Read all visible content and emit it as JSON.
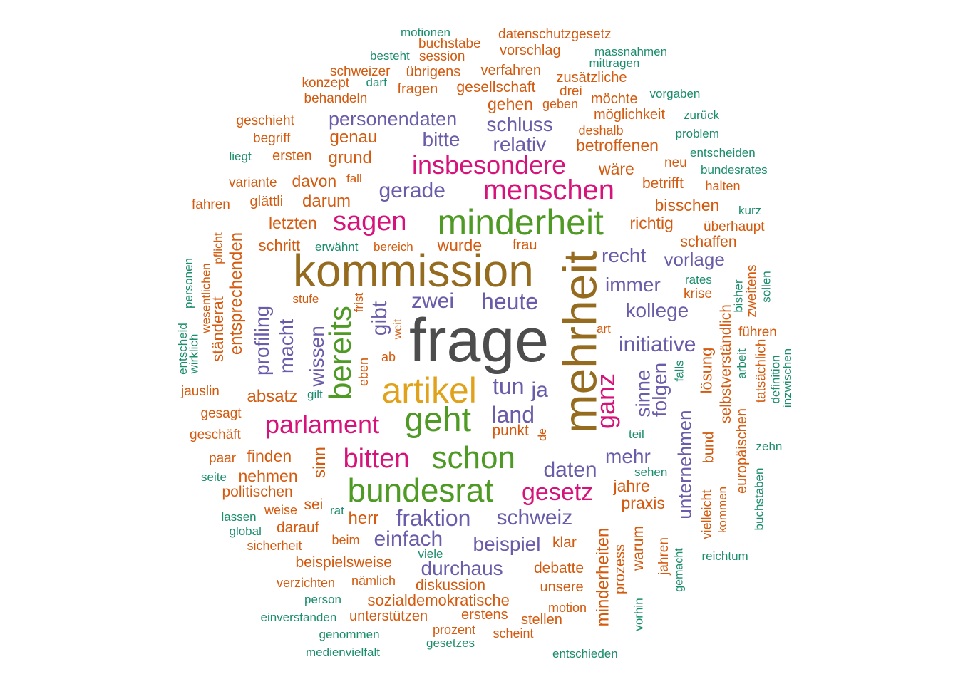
{
  "colors": {
    "dark_gray": "#4d4d4d",
    "brown": "#946b1f",
    "green": "#4f9a24",
    "gold": "#e0a21b",
    "magenta": "#d6137a",
    "purple": "#6a5ca8",
    "orange": "#d35a0e",
    "teal": "#1c8d6c"
  },
  "words": [
    {
      "text": "frage",
      "color": "dark_gray",
      "weight": 100
    },
    {
      "text": "mehrheit",
      "color": "brown",
      "weight": 79
    },
    {
      "text": "kommission",
      "color": "brown",
      "weight": 66
    },
    {
      "text": "minderheit",
      "color": "green",
      "weight": 57
    },
    {
      "text": "artikel",
      "color": "gold",
      "weight": 55
    },
    {
      "text": "geht",
      "color": "green",
      "weight": 53
    },
    {
      "text": "bundesrat",
      "color": "green",
      "weight": 51
    },
    {
      "text": "schon",
      "color": "green",
      "weight": 50
    },
    {
      "text": "bereits",
      "color": "green",
      "weight": 48
    },
    {
      "text": "menschen",
      "color": "magenta",
      "weight": 44
    },
    {
      "text": "sagen",
      "color": "magenta",
      "weight": 41
    },
    {
      "text": "insbesondere",
      "color": "magenta",
      "weight": 40
    },
    {
      "text": "parlament",
      "color": "magenta",
      "weight": 40
    },
    {
      "text": "bitten",
      "color": "magenta",
      "weight": 40
    },
    {
      "text": "gesetz",
      "color": "magenta",
      "weight": 39
    },
    {
      "text": "ganz",
      "color": "magenta",
      "weight": 39
    },
    {
      "text": "tun",
      "color": "purple",
      "weight": 37
    },
    {
      "text": "gerade",
      "color": "purple",
      "weight": 37
    },
    {
      "text": "fraktion",
      "color": "purple",
      "weight": 36
    },
    {
      "text": "zwei",
      "color": "purple",
      "weight": 35
    },
    {
      "text": "heute",
      "color": "purple",
      "weight": 35
    },
    {
      "text": "gibt",
      "color": "purple",
      "weight": 35
    },
    {
      "text": "einfach",
      "color": "purple",
      "weight": 34
    },
    {
      "text": "schweiz",
      "color": "purple",
      "weight": 34
    },
    {
      "text": "daten",
      "color": "purple",
      "weight": 34
    },
    {
      "text": "personendaten",
      "color": "purple",
      "weight": 32
    },
    {
      "text": "land",
      "color": "purple",
      "weight": 32
    },
    {
      "text": "unternehmen",
      "color": "purple",
      "weight": 31
    },
    {
      "text": "wissen",
      "color": "purple",
      "weight": 31
    },
    {
      "text": "schluss",
      "color": "purple",
      "weight": 31
    },
    {
      "text": "mehr",
      "color": "purple",
      "weight": 31
    },
    {
      "text": "recht",
      "color": "purple",
      "weight": 31
    },
    {
      "text": "immer",
      "color": "purple",
      "weight": 31
    },
    {
      "text": "kollege",
      "color": "purple",
      "weight": 31
    },
    {
      "text": "initiative",
      "color": "purple",
      "weight": 31
    },
    {
      "text": "beispiel",
      "color": "purple",
      "weight": 31
    },
    {
      "text": "durchaus",
      "color": "purple",
      "weight": 31
    },
    {
      "text": "relativ",
      "color": "purple",
      "weight": 30
    },
    {
      "text": "bitte",
      "color": "purple",
      "weight": 30
    },
    {
      "text": "macht",
      "color": "purple",
      "weight": 30
    },
    {
      "text": "profiling",
      "color": "purple",
      "weight": 30
    },
    {
      "text": "sinne",
      "color": "purple",
      "weight": 30
    },
    {
      "text": "folgen",
      "color": "purple",
      "weight": 30
    },
    {
      "text": "ja",
      "color": "purple",
      "weight": 30
    },
    {
      "text": "vorlage",
      "color": "purple",
      "weight": 29
    },
    {
      "text": "sinn",
      "color": "orange",
      "weight": 26
    },
    {
      "text": "herr",
      "color": "orange",
      "weight": 26
    },
    {
      "text": "absatz",
      "color": "orange",
      "weight": 26
    },
    {
      "text": "entsprechenden",
      "color": "orange",
      "weight": 26
    },
    {
      "text": "minderheiten",
      "color": "orange",
      "weight": 26
    },
    {
      "text": "genau",
      "color": "orange",
      "weight": 25
    },
    {
      "text": "grund",
      "color": "orange",
      "weight": 25
    },
    {
      "text": "darum",
      "color": "orange",
      "weight": 25
    },
    {
      "text": "davon",
      "color": "orange",
      "weight": 24
    },
    {
      "text": "betroffenen",
      "color": "orange",
      "weight": 24
    },
    {
      "text": "wäre",
      "color": "orange",
      "weight": 24
    },
    {
      "text": "bisschen",
      "color": "orange",
      "weight": 24
    },
    {
      "text": "richtig",
      "color": "orange",
      "weight": 24
    },
    {
      "text": "letzten",
      "color": "orange",
      "weight": 24
    },
    {
      "text": "jahre",
      "color": "orange",
      "weight": 24
    },
    {
      "text": "praxis",
      "color": "orange",
      "weight": 24
    },
    {
      "text": "gehen",
      "color": "orange",
      "weight": 24
    },
    {
      "text": "wurde",
      "color": "orange",
      "weight": 24
    },
    {
      "text": "finden",
      "color": "orange",
      "weight": 24
    },
    {
      "text": "nehmen",
      "color": "orange",
      "weight": 24
    },
    {
      "text": "sozialdemokratische",
      "color": "orange",
      "weight": 24
    },
    {
      "text": "selbstverständlich",
      "color": "orange",
      "weight": 24
    },
    {
      "text": "lösung",
      "color": "orange",
      "weight": 23
    },
    {
      "text": "ständerat",
      "color": "orange",
      "weight": 23
    },
    {
      "text": "schritt",
      "color": "orange",
      "weight": 23
    },
    {
      "text": "politischen",
      "color": "orange",
      "weight": 23
    },
    {
      "text": "sei",
      "color": "orange",
      "weight": 23
    },
    {
      "text": "darauf",
      "color": "orange",
      "weight": 23
    },
    {
      "text": "beispielsweise",
      "color": "orange",
      "weight": 23
    },
    {
      "text": "diskussion",
      "color": "orange",
      "weight": 23
    },
    {
      "text": "debatte",
      "color": "orange",
      "weight": 23
    },
    {
      "text": "klar",
      "color": "orange",
      "weight": 23
    },
    {
      "text": "warum",
      "color": "orange",
      "weight": 23
    },
    {
      "text": "schaffen",
      "color": "orange",
      "weight": 23
    },
    {
      "text": "punkt",
      "color": "orange",
      "weight": 22
    },
    {
      "text": "betrifft",
      "color": "orange",
      "weight": 22
    },
    {
      "text": "gesellschaft",
      "color": "orange",
      "weight": 22
    },
    {
      "text": "verfahren",
      "color": "orange",
      "weight": 22
    },
    {
      "text": "zusätzliche",
      "color": "orange",
      "weight": 22
    },
    {
      "text": "möchte",
      "color": "orange",
      "weight": 22
    },
    {
      "text": "möglichkeit",
      "color": "orange",
      "weight": 22
    },
    {
      "text": "fragen",
      "color": "orange",
      "weight": 22
    },
    {
      "text": "vorschlag",
      "color": "orange",
      "weight": 22
    },
    {
      "text": "übrigens",
      "color": "orange",
      "weight": 22
    },
    {
      "text": "europäischen",
      "color": "orange",
      "weight": 22
    },
    {
      "text": "bund",
      "color": "orange",
      "weight": 22
    },
    {
      "text": "ersten",
      "color": "orange",
      "weight": 22
    },
    {
      "text": "glättli",
      "color": "orange",
      "weight": 21
    },
    {
      "text": "prozess",
      "color": "orange",
      "weight": 21
    },
    {
      "text": "unsere",
      "color": "orange",
      "weight": 21
    },
    {
      "text": "unterstützen",
      "color": "orange",
      "weight": 21
    },
    {
      "text": "erstens",
      "color": "orange",
      "weight": 21
    },
    {
      "text": "stellen",
      "color": "orange",
      "weight": 21
    },
    {
      "text": "frau",
      "color": "orange",
      "weight": 21
    },
    {
      "text": "jahren",
      "color": "orange",
      "weight": 20
    },
    {
      "text": "tatsächlich",
      "color": "orange",
      "weight": 20
    },
    {
      "text": "neu",
      "color": "orange",
      "weight": 20
    },
    {
      "text": "überhaupt",
      "color": "orange",
      "weight": 20
    },
    {
      "text": "zweitens",
      "color": "orange",
      "weight": 20
    },
    {
      "text": "führen",
      "color": "orange",
      "weight": 20
    },
    {
      "text": "krise",
      "color": "orange",
      "weight": 20
    },
    {
      "text": "jauslin",
      "color": "orange",
      "weight": 20
    },
    {
      "text": "gesagt",
      "color": "orange",
      "weight": 20
    },
    {
      "text": "geschäft",
      "color": "orange",
      "weight": 20
    },
    {
      "text": "paar",
      "color": "orange",
      "weight": 20
    },
    {
      "text": "variante",
      "color": "orange",
      "weight": 20
    },
    {
      "text": "fahren",
      "color": "orange",
      "weight": 20
    },
    {
      "text": "schweizer",
      "color": "orange",
      "weight": 20
    },
    {
      "text": "behandeln",
      "color": "orange",
      "weight": 20
    },
    {
      "text": "geschieht",
      "color": "orange",
      "weight": 20
    },
    {
      "text": "begriff",
      "color": "orange",
      "weight": 20
    },
    {
      "text": "konzept",
      "color": "orange",
      "weight": 20
    },
    {
      "text": "buchstabe",
      "color": "orange",
      "weight": 20
    },
    {
      "text": "session",
      "color": "orange",
      "weight": 20
    },
    {
      "text": "datenschutzgesetz",
      "color": "orange",
      "weight": 20
    },
    {
      "text": "drei",
      "color": "orange",
      "weight": 20
    },
    {
      "text": "deshalb",
      "color": "orange",
      "weight": 20
    },
    {
      "text": "geben",
      "color": "orange",
      "weight": 19
    },
    {
      "text": "halten",
      "color": "orange",
      "weight": 19
    },
    {
      "text": "motion",
      "color": "orange",
      "weight": 19
    },
    {
      "text": "prozent",
      "color": "orange",
      "weight": 19
    },
    {
      "text": "scheint",
      "color": "orange",
      "weight": 19
    },
    {
      "text": "verzichten",
      "color": "orange",
      "weight": 19
    },
    {
      "text": "nämlich",
      "color": "orange",
      "weight": 19
    },
    {
      "text": "sicherheit",
      "color": "orange",
      "weight": 19
    },
    {
      "text": "beim",
      "color": "orange",
      "weight": 19
    },
    {
      "text": "weise",
      "color": "orange",
      "weight": 19
    },
    {
      "text": "fall",
      "color": "orange",
      "weight": 18
    },
    {
      "text": "eben",
      "color": "orange",
      "weight": 18
    },
    {
      "text": "ab",
      "color": "orange",
      "weight": 18
    },
    {
      "text": "art",
      "color": "orange",
      "weight": 18
    },
    {
      "text": "de",
      "color": "orange",
      "weight": 17
    },
    {
      "text": "vielleicht",
      "color": "orange",
      "weight": 18
    },
    {
      "text": "kommen",
      "color": "orange",
      "weight": 17
    },
    {
      "text": "bereich",
      "color": "orange",
      "weight": 17
    },
    {
      "text": "stufe",
      "color": "orange",
      "weight": 17
    },
    {
      "text": "pflicht",
      "color": "orange",
      "weight": 17
    },
    {
      "text": "wesentlichen",
      "color": "orange",
      "weight": 17
    },
    {
      "text": "frist",
      "color": "orange",
      "weight": 17
    },
    {
      "text": "weit",
      "color": "orange",
      "weight": 16
    },
    {
      "text": "gemacht",
      "color": "teal",
      "weight": 16
    },
    {
      "text": "motionen",
      "color": "teal",
      "weight": 17
    },
    {
      "text": "massnahmen",
      "color": "teal",
      "weight": 17
    },
    {
      "text": "mittragen",
      "color": "teal",
      "weight": 17
    },
    {
      "text": "besteht",
      "color": "teal",
      "weight": 17
    },
    {
      "text": "darf",
      "color": "teal",
      "weight": 17
    },
    {
      "text": "vorgaben",
      "color": "teal",
      "weight": 17
    },
    {
      "text": "zurück",
      "color": "teal",
      "weight": 17
    },
    {
      "text": "problem",
      "color": "teal",
      "weight": 17
    },
    {
      "text": "entscheiden",
      "color": "teal",
      "weight": 17
    },
    {
      "text": "bundesrates",
      "color": "teal",
      "weight": 17
    },
    {
      "text": "liegt",
      "color": "teal",
      "weight": 17
    },
    {
      "text": "kurz",
      "color": "teal",
      "weight": 17
    },
    {
      "text": "erwähnt",
      "color": "teal",
      "weight": 17
    },
    {
      "text": "rates",
      "color": "teal",
      "weight": 17
    },
    {
      "text": "bisher",
      "color": "teal",
      "weight": 17
    },
    {
      "text": "sollen",
      "color": "teal",
      "weight": 17
    },
    {
      "text": "personen",
      "color": "teal",
      "weight": 17
    },
    {
      "text": "entscheid",
      "color": "teal",
      "weight": 17
    },
    {
      "text": "wirklich",
      "color": "teal",
      "weight": 17
    },
    {
      "text": "gilt",
      "color": "teal",
      "weight": 17
    },
    {
      "text": "falls",
      "color": "teal",
      "weight": 17
    },
    {
      "text": "arbeit",
      "color": "teal",
      "weight": 17
    },
    {
      "text": "definition",
      "color": "teal",
      "weight": 17
    },
    {
      "text": "inzwischen",
      "color": "teal",
      "weight": 17
    },
    {
      "text": "teil",
      "color": "teal",
      "weight": 17
    },
    {
      "text": "sehen",
      "color": "teal",
      "weight": 17
    },
    {
      "text": "zehn",
      "color": "teal",
      "weight": 17
    },
    {
      "text": "seite",
      "color": "teal",
      "weight": 17
    },
    {
      "text": "rat",
      "color": "teal",
      "weight": 17
    },
    {
      "text": "lassen",
      "color": "teal",
      "weight": 17
    },
    {
      "text": "global",
      "color": "teal",
      "weight": 17
    },
    {
      "text": "buchstaben",
      "color": "teal",
      "weight": 17
    },
    {
      "text": "reichtum",
      "color": "teal",
      "weight": 17
    },
    {
      "text": "viele",
      "color": "teal",
      "weight": 17
    },
    {
      "text": "person",
      "color": "teal",
      "weight": 17
    },
    {
      "text": "einverstanden",
      "color": "teal",
      "weight": 17
    },
    {
      "text": "genommen",
      "color": "teal",
      "weight": 17
    },
    {
      "text": "gesetzes",
      "color": "teal",
      "weight": 17
    },
    {
      "text": "medienvielfalt",
      "color": "teal",
      "weight": 17
    },
    {
      "text": "entschieden",
      "color": "teal",
      "weight": 17
    },
    {
      "text": "vorhin",
      "color": "teal",
      "weight": 17
    }
  ]
}
